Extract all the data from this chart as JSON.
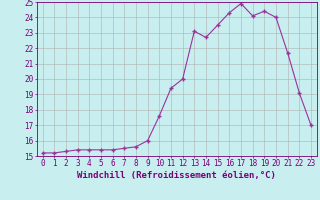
{
  "x": [
    0,
    1,
    2,
    3,
    4,
    5,
    6,
    7,
    8,
    9,
    10,
    11,
    12,
    13,
    14,
    15,
    16,
    17,
    18,
    19,
    20,
    21,
    22,
    23
  ],
  "y": [
    15.2,
    15.2,
    15.3,
    15.4,
    15.4,
    15.4,
    15.4,
    15.5,
    15.6,
    16.0,
    17.6,
    19.4,
    20.0,
    23.1,
    22.7,
    23.5,
    24.3,
    24.9,
    24.1,
    24.4,
    24.0,
    21.7,
    19.1,
    17.0
  ],
  "line_color": "#993399",
  "marker": "+",
  "marker_size": 3.5,
  "line_width": 0.8,
  "xlabel": "Windchill (Refroidissement éolien,°C)",
  "xlim": [
    -0.5,
    23.5
  ],
  "ylim": [
    15,
    25
  ],
  "xticks": [
    0,
    1,
    2,
    3,
    4,
    5,
    6,
    7,
    8,
    9,
    10,
    11,
    12,
    13,
    14,
    15,
    16,
    17,
    18,
    19,
    20,
    21,
    22,
    23
  ],
  "yticks": [
    15,
    16,
    17,
    18,
    19,
    20,
    21,
    22,
    23,
    24,
    25
  ],
  "bg_color": "#c8eef0",
  "grid_color": "#b0b0b0",
  "font_color": "#7a0077",
  "tick_fontsize": 5.5,
  "xlabel_fontsize": 6.5
}
